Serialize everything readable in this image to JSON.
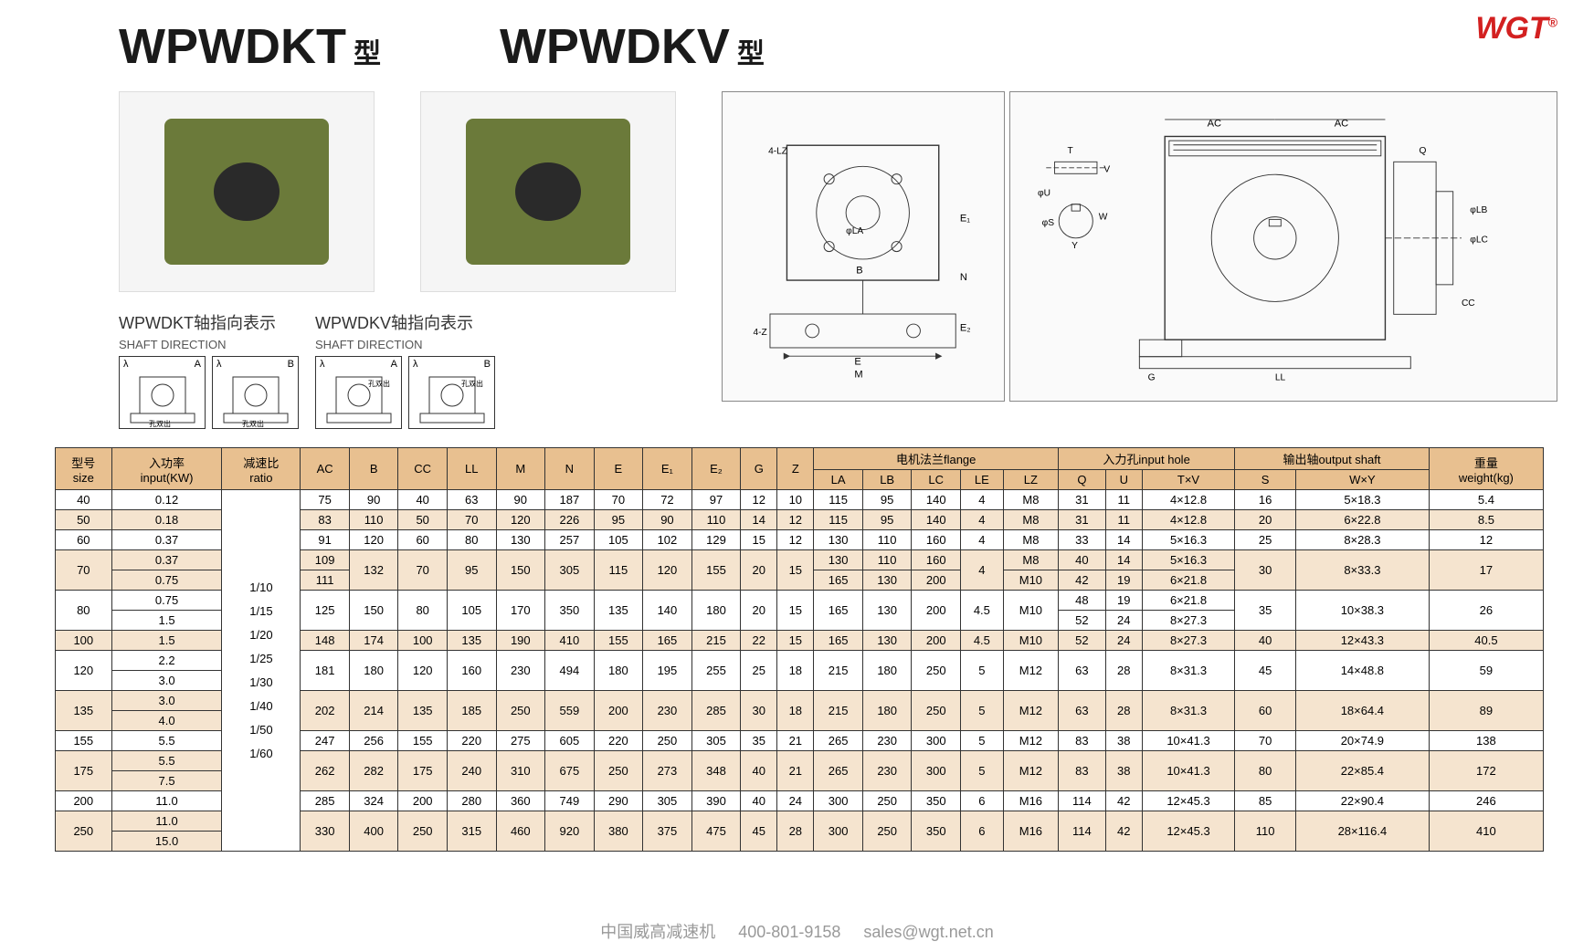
{
  "logo": "WGT",
  "titles": {
    "t1": "WPWDKT",
    "t1suffix": "型",
    "t2": "WPWDKV",
    "t2suffix": "型"
  },
  "shaft_labels": {
    "l1": "WPWDKT轴指向表示",
    "l1sub": "SHAFT DIRECTION",
    "l2": "WPWDKV轴指向表示",
    "l2sub": "SHAFT DIRECTION",
    "lambda": "λ",
    "A": "A",
    "B": "B",
    "hole": "孔双出"
  },
  "table": {
    "headers": {
      "size": "型号",
      "size_sub": "size",
      "input": "入功率",
      "input_sub": "input(KW)",
      "ratio": "减速比",
      "ratio_sub": "ratio",
      "AC": "AC",
      "B": "B",
      "CC": "CC",
      "LL": "LL",
      "M": "M",
      "N": "N",
      "E": "E",
      "E1": "E₁",
      "E2": "E₂",
      "G": "G",
      "Z": "Z",
      "flange": "电机法兰flange",
      "LA": "LA",
      "LB": "LB",
      "LC": "LC",
      "LE": "LE",
      "LZ": "LZ",
      "inhole": "入力孔input hole",
      "Q": "Q",
      "U": "U",
      "TV": "T×V",
      "outshaft": "输出轴output shaft",
      "S": "S",
      "WY": "W×Y",
      "weight": "重量",
      "weight_sub": "weight(kg)"
    },
    "ratio_text": "1/10\n1/15\n1/20\n1/25\n1/30\n1/40\n1/50\n1/60",
    "colors": {
      "header_bg": "#e8c090",
      "zebra_bg": "#f5e4cf",
      "border": "#333333"
    },
    "rows": [
      {
        "size": "40",
        "kw": [
          "0.12"
        ],
        "AC": "75",
        "B": "90",
        "CC": "40",
        "LL": "63",
        "M": "90",
        "N": "187",
        "E": "70",
        "E1": "72",
        "E2": "97",
        "G": "12",
        "Z": "10",
        "LA": "115",
        "LB": "95",
        "LC": "140",
        "LE": "4",
        "LZ": "M8",
        "Q": "31",
        "U": "11",
        "TV": "4×12.8",
        "S": "16",
        "WY": "5×18.3",
        "wt": "5.4"
      },
      {
        "size": "50",
        "kw": [
          "0.18"
        ],
        "AC": "83",
        "B": "110",
        "CC": "50",
        "LL": "70",
        "M": "120",
        "N": "226",
        "E": "95",
        "E1": "90",
        "E2": "110",
        "G": "14",
        "Z": "12",
        "LA": "115",
        "LB": "95",
        "LC": "140",
        "LE": "4",
        "LZ": "M8",
        "Q": "31",
        "U": "11",
        "TV": "4×12.8",
        "S": "20",
        "WY": "6×22.8",
        "wt": "8.5"
      },
      {
        "size": "60",
        "kw": [
          "0.37"
        ],
        "AC": "91",
        "B": "120",
        "CC": "60",
        "LL": "80",
        "M": "130",
        "N": "257",
        "E": "105",
        "E1": "102",
        "E2": "129",
        "G": "15",
        "Z": "12",
        "LA": "130",
        "LB": "110",
        "LC": "160",
        "LE": "4",
        "LZ": "M8",
        "Q": "33",
        "U": "14",
        "TV": "5×16.3",
        "S": "25",
        "WY": "8×28.3",
        "wt": "12"
      },
      {
        "size": "70",
        "kw": [
          "0.37",
          "0.75"
        ],
        "AC": [
          "109",
          "111"
        ],
        "B": "132",
        "CC": "70",
        "LL": "95",
        "M": "150",
        "N": "305",
        "E": "115",
        "E1": "120",
        "E2": "155",
        "G": "20",
        "Z": "15",
        "LA": [
          "130",
          "165"
        ],
        "LB": [
          "110",
          "130"
        ],
        "LC": [
          "160",
          "200"
        ],
        "LE": "4",
        "LZ": [
          "M8",
          "M10"
        ],
        "Q": [
          "40",
          "42"
        ],
        "U": [
          "14",
          "19"
        ],
        "TV": [
          "5×16.3",
          "6×21.8"
        ],
        "S": "30",
        "WY": "8×33.3",
        "wt": "17"
      },
      {
        "size": "80",
        "kw": [
          "0.75",
          "1.5"
        ],
        "AC": "125",
        "B": "150",
        "CC": "80",
        "LL": "105",
        "M": "170",
        "N": "350",
        "E": "135",
        "E1": "140",
        "E2": "180",
        "G": "20",
        "Z": "15",
        "LA": "165",
        "LB": "130",
        "LC": "200",
        "LE": "4.5",
        "LZ": "M10",
        "Q": [
          "48",
          "52"
        ],
        "U": [
          "19",
          "24"
        ],
        "TV": [
          "6×21.8",
          "8×27.3"
        ],
        "S": "35",
        "WY": "10×38.3",
        "wt": "26"
      },
      {
        "size": "100",
        "kw": [
          "1.5"
        ],
        "AC": "148",
        "B": "174",
        "CC": "100",
        "LL": "135",
        "M": "190",
        "N": "410",
        "E": "155",
        "E1": "165",
        "E2": "215",
        "G": "22",
        "Z": "15",
        "LA": "165",
        "LB": "130",
        "LC": "200",
        "LE": "4.5",
        "LZ": "M10",
        "Q": "52",
        "U": "24",
        "TV": "8×27.3",
        "S": "40",
        "WY": "12×43.3",
        "wt": "40.5"
      },
      {
        "size": "120",
        "kw": [
          "2.2",
          "3.0"
        ],
        "AC": "181",
        "B": "180",
        "CC": "120",
        "LL": "160",
        "M": "230",
        "N": "494",
        "E": "180",
        "E1": "195",
        "E2": "255",
        "G": "25",
        "Z": "18",
        "LA": "215",
        "LB": "180",
        "LC": "250",
        "LE": "5",
        "LZ": "M12",
        "Q": "63",
        "U": "28",
        "TV": "8×31.3",
        "S": "45",
        "WY": "14×48.8",
        "wt": "59"
      },
      {
        "size": "135",
        "kw": [
          "3.0",
          "4.0"
        ],
        "AC": "202",
        "B": "214",
        "CC": "135",
        "LL": "185",
        "M": "250",
        "N": "559",
        "E": "200",
        "E1": "230",
        "E2": "285",
        "G": "30",
        "Z": "18",
        "LA": "215",
        "LB": "180",
        "LC": "250",
        "LE": "5",
        "LZ": "M12",
        "Q": "63",
        "U": "28",
        "TV": "8×31.3",
        "S": "60",
        "WY": "18×64.4",
        "wt": "89"
      },
      {
        "size": "155",
        "kw": [
          "5.5"
        ],
        "AC": "247",
        "B": "256",
        "CC": "155",
        "LL": "220",
        "M": "275",
        "N": "605",
        "E": "220",
        "E1": "250",
        "E2": "305",
        "G": "35",
        "Z": "21",
        "LA": "265",
        "LB": "230",
        "LC": "300",
        "LE": "5",
        "LZ": "M12",
        "Q": "83",
        "U": "38",
        "TV": "10×41.3",
        "S": "70",
        "WY": "20×74.9",
        "wt": "138"
      },
      {
        "size": "175",
        "kw": [
          "5.5",
          "7.5"
        ],
        "AC": "262",
        "B": "282",
        "CC": "175",
        "LL": "240",
        "M": "310",
        "N": "675",
        "E": "250",
        "E1": "273",
        "E2": "348",
        "G": "40",
        "Z": "21",
        "LA": "265",
        "LB": "230",
        "LC": "300",
        "LE": "5",
        "LZ": "M12",
        "Q": "83",
        "U": "38",
        "TV": "10×41.3",
        "S": "80",
        "WY": "22×85.4",
        "wt": "172"
      },
      {
        "size": "200",
        "kw": [
          "11.0"
        ],
        "AC": "285",
        "B": "324",
        "CC": "200",
        "LL": "280",
        "M": "360",
        "N": "749",
        "E": "290",
        "E1": "305",
        "E2": "390",
        "G": "40",
        "Z": "24",
        "LA": "300",
        "LB": "250",
        "LC": "350",
        "LE": "6",
        "LZ": "M16",
        "Q": "114",
        "U": "42",
        "TV": "12×45.3",
        "S": "85",
        "WY": "22×90.4",
        "wt": "246"
      },
      {
        "size": "250",
        "kw": [
          "11.0",
          "15.0"
        ],
        "AC": "330",
        "B": "400",
        "CC": "250",
        "LL": "315",
        "M": "460",
        "N": "920",
        "E": "380",
        "E1": "375",
        "E2": "475",
        "G": "45",
        "Z": "28",
        "LA": "300",
        "LB": "250",
        "LC": "350",
        "LE": "6",
        "LZ": "M16",
        "Q": "114",
        "U": "42",
        "TV": "12×45.3",
        "S": "110",
        "WY": "28×116.4",
        "wt": "410"
      }
    ]
  },
  "footer": {
    "company": "中国威高减速机",
    "phone": "400-801-9158",
    "email": "sales@wgt.net.cn"
  }
}
